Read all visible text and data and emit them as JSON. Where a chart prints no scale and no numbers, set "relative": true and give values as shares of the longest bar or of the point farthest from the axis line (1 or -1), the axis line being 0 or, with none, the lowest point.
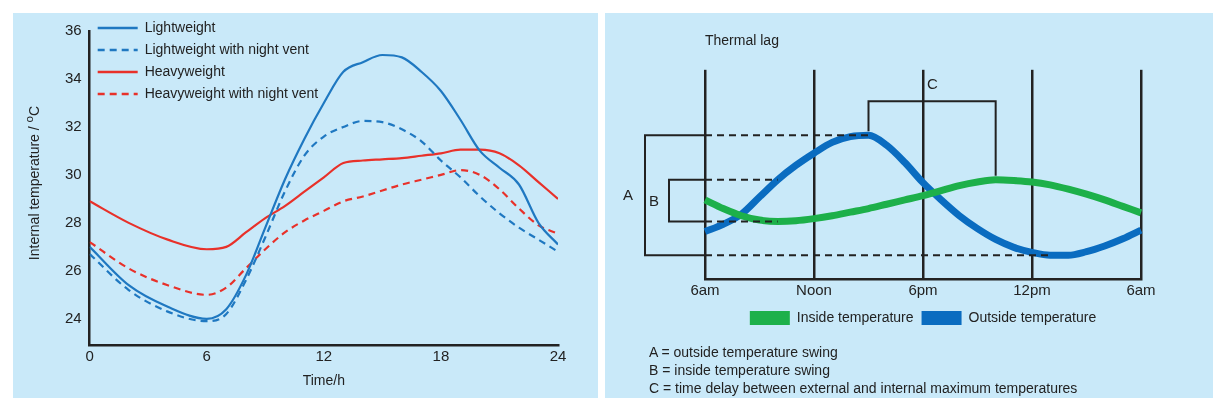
{
  "chart_data": [
    {
      "type": "line",
      "xlabel": "Time/h",
      "ylabel": "Internal temperature / $^{o}$C",
      "x": [
        0,
        2,
        4,
        6,
        7,
        8,
        9,
        10,
        11,
        12,
        13,
        14,
        15,
        16,
        17,
        18,
        19,
        20,
        21,
        22,
        23,
        24
      ],
      "xlim": [
        0,
        24
      ],
      "xticks": [
        0,
        6,
        12,
        18,
        24
      ],
      "ylim": [
        22.9,
        36
      ],
      "yticks": [
        24,
        26,
        28,
        30,
        32,
        34,
        36
      ],
      "legend": "top left",
      "marker": "none",
      "series": [
        {
          "name": "Lightweight",
          "color": "#1f78c1",
          "line_style": "solid",
          "values": [
            27.0,
            25.4,
            24.5,
            24.0,
            24.4,
            25.8,
            27.8,
            29.8,
            31.5,
            33.0,
            34.3,
            34.7,
            35.0,
            34.9,
            34.3,
            33.5,
            32.3,
            31.0,
            30.3,
            29.6,
            28.0,
            27.1
          ]
        },
        {
          "name": "Lightweight with night vent",
          "color": "#1f78c1",
          "line_style": "dashed",
          "values": [
            26.7,
            25.2,
            24.3,
            23.9,
            24.2,
            25.6,
            27.4,
            29.3,
            30.8,
            31.6,
            32.0,
            32.25,
            32.2,
            31.9,
            31.4,
            30.6,
            29.9,
            29.1,
            28.4,
            27.8,
            27.3,
            26.8
          ]
        },
        {
          "name": "Heavyweight",
          "color": "#e8312a",
          "line_style": "solid",
          "values": [
            28.9,
            28.0,
            27.3,
            26.9,
            27.0,
            27.6,
            28.2,
            28.7,
            29.3,
            29.9,
            30.5,
            30.6,
            30.65,
            30.7,
            30.8,
            30.9,
            31.05,
            31.05,
            30.9,
            30.4,
            29.7,
            29.0
          ]
        },
        {
          "name": "Heavyweight with night vent",
          "color": "#e8312a",
          "line_style": "dashed",
          "values": [
            27.2,
            26.1,
            25.4,
            25.0,
            25.3,
            26.1,
            26.9,
            27.6,
            28.1,
            28.5,
            28.9,
            29.1,
            29.35,
            29.6,
            29.8,
            30.0,
            30.2,
            30.0,
            29.4,
            28.6,
            27.9,
            27.55
          ]
        }
      ]
    },
    {
      "type": "line",
      "title": "Thermal lag",
      "relative": true,
      "categories": [
        "6am",
        null,
        null,
        null,
        null,
        null,
        "Noon",
        null,
        null,
        null,
        null,
        null,
        "6pm",
        null,
        null,
        null,
        null,
        null,
        "12pm",
        null,
        null,
        null,
        null,
        null,
        "6am"
      ],
      "grid": "x",
      "legend": "bottom",
      "marker": "none",
      "ref_lines": [
        {
          "axis": "y",
          "value": 1.0,
          "color": "#222222",
          "line_style": "dashed"
        },
        {
          "axis": "y",
          "value": 0.165,
          "color": "#222222",
          "line_style": "dashed"
        },
        {
          "axis": "y",
          "value": 0.69,
          "color": "#222222",
          "line_style": "dashed"
        },
        {
          "axis": "y",
          "value": 0.4,
          "color": "#222222",
          "line_style": "dashed"
        }
      ],
      "annotations": [
        "A",
        "B",
        "C",
        "A = outside temperature swing",
        "B = inside temperature swing",
        "C = time delay between external and internal maximum temperatures"
      ],
      "series": [
        {
          "name": "Inside temperature",
          "color": "#1db04a",
          "values": [
            0.55,
            0.49,
            0.44,
            0.41,
            0.4,
            0.405,
            0.42,
            0.44,
            0.465,
            0.49,
            0.52,
            0.55,
            0.58,
            0.615,
            0.65,
            0.675,
            0.69,
            0.685,
            0.675,
            0.655,
            0.625,
            0.59,
            0.55,
            0.505,
            0.46
          ]
        },
        {
          "name": "Outside temperature",
          "color": "#0a6cc0",
          "values": [
            0.33,
            0.38,
            0.45,
            0.57,
            0.69,
            0.79,
            0.875,
            0.95,
            0.99,
            1.0,
            0.93,
            0.81,
            0.67,
            0.55,
            0.44,
            0.35,
            0.275,
            0.22,
            0.185,
            0.165,
            0.165,
            0.19,
            0.23,
            0.28,
            0.34
          ]
        }
      ]
    }
  ]
}
